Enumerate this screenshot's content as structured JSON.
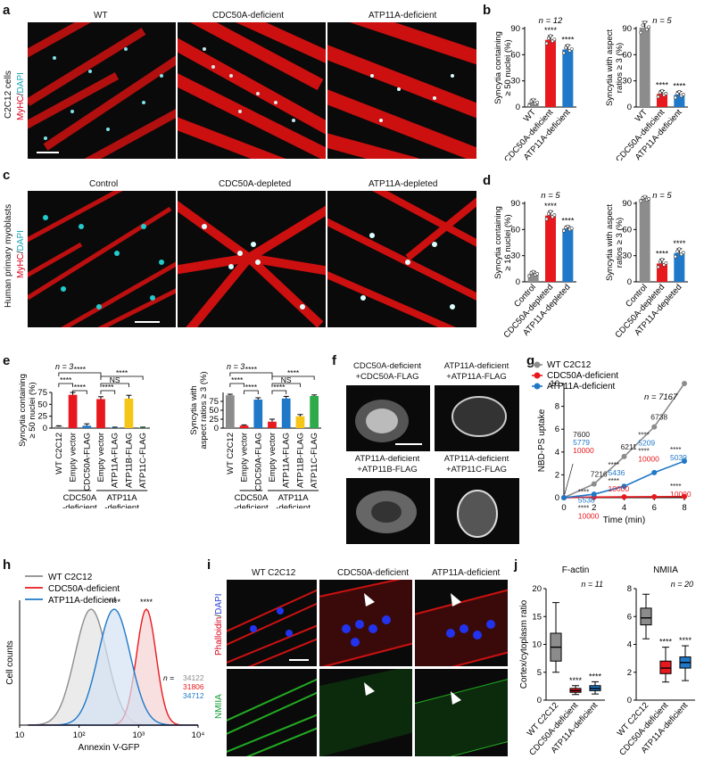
{
  "panels": {
    "a": {
      "label": "a",
      "columns": [
        "WT",
        "CDC50A-deficient",
        "ATP11A-deficient"
      ],
      "side_label": "C2C12 cells",
      "stain_red": "MyHC",
      "stain_sep": "/",
      "stain_cyan": "DAPI"
    },
    "b": {
      "label": "b"
    },
    "c": {
      "label": "c",
      "columns": [
        "Control",
        "CDC50A-depleted",
        "ATP11A-depleted"
      ],
      "side_label": "Human primary myoblasts",
      "stain_red": "MyHC",
      "stain_sep": "/",
      "stain_cyan": "DAPI"
    },
    "d": {
      "label": "d"
    },
    "e": {
      "label": "e"
    },
    "f": {
      "label": "f",
      "cells": [
        [
          "CDC50A-deficient",
          "+CDC50A-FLAG"
        ],
        [
          "ATP11A-deficient",
          "+ATP11A-FLAG"
        ],
        [
          "ATP11A-deficient",
          "+ATP11B-FLAG"
        ],
        [
          "ATP11A-deficient",
          "+ATP11C-FLAG"
        ]
      ]
    },
    "g": {
      "label": "g"
    },
    "h": {
      "label": "h"
    },
    "i": {
      "label": "i",
      "columns": [
        "WT C2C12",
        "CDC50A-deficient",
        "ATP11A-deficient"
      ],
      "row1_red": "Phalloidin",
      "row1_sep": "/",
      "row1_blue": "DAPI",
      "row2": "NMIIA"
    },
    "j": {
      "label": "j"
    }
  },
  "chart_data": [
    {
      "id": "b1",
      "type": "bar",
      "n_label": "n = 12",
      "ylabel_lines": [
        "Syncytia containing",
        "≥ 50 nuclei (%)"
      ],
      "yticks": [
        0,
        30,
        60,
        90
      ],
      "ylim": [
        0,
        90
      ],
      "categories": [
        "WT",
        "CDC50A-deficient",
        "ATP11A-deficient"
      ],
      "values": [
        5,
        77,
        66
      ],
      "errors": [
        4,
        5,
        5
      ],
      "sig": [
        "",
        "****",
        "****"
      ],
      "colors": [
        "#8c8c8c",
        "#e8191e",
        "#1f78c8"
      ]
    },
    {
      "id": "b2",
      "type": "bar",
      "n_label": "n = 5",
      "ylabel_lines": [
        "Syncytia with aspect",
        "ratios ≥ 3 (%)"
      ],
      "yticks": [
        0,
        30,
        60,
        90
      ],
      "ylim": [
        0,
        90
      ],
      "categories": [
        "WT",
        "CDC50A-deficient",
        "ATP11A-deficient"
      ],
      "values": [
        91,
        15,
        14
      ],
      "errors": [
        7,
        4,
        4
      ],
      "sig": [
        "",
        "****",
        "****"
      ],
      "colors": [
        "#8c8c8c",
        "#e8191e",
        "#1f78c8"
      ]
    },
    {
      "id": "d1",
      "type": "bar",
      "n_label": "n = 5",
      "ylabel_lines": [
        "Syncytia containing",
        "≥ 16 nuclei (%)"
      ],
      "yticks": [
        0,
        30,
        60,
        90
      ],
      "ylim": [
        0,
        90
      ],
      "categories": [
        "Control",
        "CDC50A-depleted",
        "ATP11A-depleted"
      ],
      "values": [
        9,
        76,
        61
      ],
      "errors": [
        3,
        5,
        3
      ],
      "sig": [
        "",
        "****",
        "****"
      ],
      "colors": [
        "#8c8c8c",
        "#e8191e",
        "#1f78c8"
      ]
    },
    {
      "id": "d2",
      "type": "bar",
      "n_label": "n = 5",
      "ylabel_lines": [
        "Syncytia with aspect",
        "ratios ≥ 3 (%)"
      ],
      "yticks": [
        0,
        30,
        60,
        90
      ],
      "ylim": [
        0,
        90
      ],
      "categories": [
        "Control",
        "CDC50A-depleted",
        "ATP11A-depleted"
      ],
      "values": [
        95,
        21,
        33
      ],
      "errors": [
        3,
        5,
        5
      ],
      "sig": [
        "",
        "****",
        "****"
      ],
      "colors": [
        "#8c8c8c",
        "#e8191e",
        "#1f78c8"
      ]
    },
    {
      "id": "e1",
      "type": "bar",
      "n_label": "n = 3",
      "ylabel_lines": [
        "Syncytia containing",
        "≥ 50 nuclei (%)"
      ],
      "yticks": [
        0,
        25,
        50,
        75
      ],
      "ylim": [
        0,
        75
      ],
      "categories": [
        "WT C2C12",
        "Empty vector",
        "CDC50A-FLAG",
        "Empty vector",
        "ATP11A-FLAG",
        "ATP11B-FLAG",
        "ATP11C-FLAG"
      ],
      "values": [
        3,
        70,
        5,
        61,
        1,
        62,
        1
      ],
      "errors": [
        2,
        6,
        4,
        5,
        1,
        7,
        1
      ],
      "colors": [
        "#8c8c8c",
        "#e8191e",
        "#1f78c8",
        "#e8191e",
        "#1f78c8",
        "#f5c518",
        "#2eaa4a"
      ],
      "groups": [
        {
          "label": "CDC50A",
          "label2": "-deficient"
        },
        {
          "label": "ATP11A",
          "label2": "-deficient"
        }
      ],
      "sig_brackets": [
        "****",
        "****",
        "****",
        "****",
        "NS",
        "****"
      ]
    },
    {
      "id": "e2",
      "type": "bar",
      "n_label": "n = 3",
      "ylabel_lines": [
        "Syncytia with",
        "aspect ratios ≥ 3 (%)"
      ],
      "yticks": [
        0,
        25,
        50,
        75
      ],
      "ylim": [
        0,
        100
      ],
      "categories": [
        "WT C2C12",
        "Empty vector",
        "CDC50A-FLAG",
        "Empty vector",
        "ATP11A-FLAG",
        "ATP11B-FLAG",
        "ATP11C-FLAG"
      ],
      "values": [
        92,
        7,
        80,
        18,
        83,
        33,
        90
      ],
      "errors": [
        3,
        2,
        5,
        7,
        6,
        5,
        3
      ],
      "colors": [
        "#8c8c8c",
        "#e8191e",
        "#1f78c8",
        "#e8191e",
        "#1f78c8",
        "#f5c518",
        "#2eaa4a"
      ],
      "groups": [
        {
          "label": "CDC50A",
          "label2": "-deficient"
        },
        {
          "label": "ATP11A",
          "label2": "-deficient"
        }
      ],
      "sig_brackets": [
        "****",
        "****",
        "****",
        "****",
        "NS",
        "****"
      ]
    },
    {
      "id": "g",
      "type": "line",
      "ylabel": "NBD-PS uptake",
      "xlabel": "Time (min)",
      "xticks": [
        0,
        2,
        4,
        6,
        8
      ],
      "yticks": [
        0,
        2,
        4,
        6,
        8,
        10
      ],
      "xlim": [
        0,
        8
      ],
      "ylim": [
        0,
        10
      ],
      "n_label": "n = 7167",
      "series": [
        {
          "name": "WT C2C12",
          "color": "#8c8c8c",
          "x": [
            0,
            2,
            4,
            6,
            8
          ],
          "y": [
            0,
            1.2,
            3.6,
            6.2,
            10
          ]
        },
        {
          "name": "CDC50A-deficient",
          "color": "#e8191e",
          "x": [
            0,
            2,
            4,
            6,
            8
          ],
          "y": [
            0,
            0.05,
            0.07,
            0.08,
            0.1
          ]
        },
        {
          "name": "ATP11A-deficient",
          "color": "#1f78c8",
          "x": [
            0,
            2,
            4,
            6,
            8
          ],
          "y": [
            0,
            0.3,
            1.0,
            2.2,
            3.2
          ]
        }
      ],
      "annotations": {
        "t0": [
          "7600",
          "5779",
          "10000"
        ],
        "t2": [
          "7216",
          "5538",
          "10000"
        ],
        "t4": [
          "6211",
          "5436",
          "10000"
        ],
        "t6": [
          "6738",
          "5209",
          "10000"
        ],
        "t8": [
          "5039",
          "10000"
        ]
      }
    },
    {
      "id": "h",
      "type": "area",
      "xlabel": "Annexin V-GFP",
      "ylabel": "Cell counts",
      "xticks": [
        "10",
        "10²",
        "10³",
        "10⁴"
      ],
      "series": [
        {
          "name": "WT C2C12",
          "color": "#8c8c8c",
          "n": "34122"
        },
        {
          "name": "CDC50A-deficient",
          "color": "#e8191e",
          "n": "31806"
        },
        {
          "name": "ATP11A-deficient",
          "color": "#1f78c8",
          "n": "34712"
        }
      ],
      "n_prefix": "n = ",
      "sig": [
        "****",
        "****"
      ]
    },
    {
      "id": "j1",
      "type": "box",
      "title": "F-actin",
      "n_label": "n = 11",
      "ylabel": "Cortex/cytoplasm ratio",
      "yticks": [
        0,
        5,
        10,
        15,
        20
      ],
      "ylim": [
        0,
        20
      ],
      "categories": [
        "WT C2C12",
        "CDC50A-deficient",
        "ATP11A-deficient"
      ],
      "boxes": [
        [
          5,
          7,
          9.5,
          12,
          17.5
        ],
        [
          1,
          1.4,
          1.7,
          2.1,
          2.6
        ],
        [
          1.1,
          1.7,
          2.1,
          2.6,
          3.3
        ]
      ],
      "sig": [
        "",
        "****",
        "****"
      ],
      "colors": [
        "#8c8c8c",
        "#e8191e",
        "#1f78c8"
      ]
    },
    {
      "id": "j2",
      "type": "box",
      "title": "NMIIA",
      "n_label": "n = 20",
      "ylabel": "",
      "yticks": [
        0,
        2,
        4,
        6,
        8
      ],
      "ylim": [
        0,
        8
      ],
      "categories": [
        "WT C2C12",
        "CDC50A-deficient",
        "ATP11A-deficient"
      ],
      "boxes": [
        [
          4.4,
          5.4,
          5.9,
          6.6,
          7.6
        ],
        [
          1.3,
          1.9,
          2.3,
          2.8,
          3.8
        ],
        [
          1.4,
          2.3,
          2.7,
          3.1,
          3.9
        ]
      ],
      "sig": [
        "",
        "****",
        "****"
      ],
      "colors": [
        "#8c8c8c",
        "#e8191e",
        "#1f78c8"
      ]
    }
  ]
}
